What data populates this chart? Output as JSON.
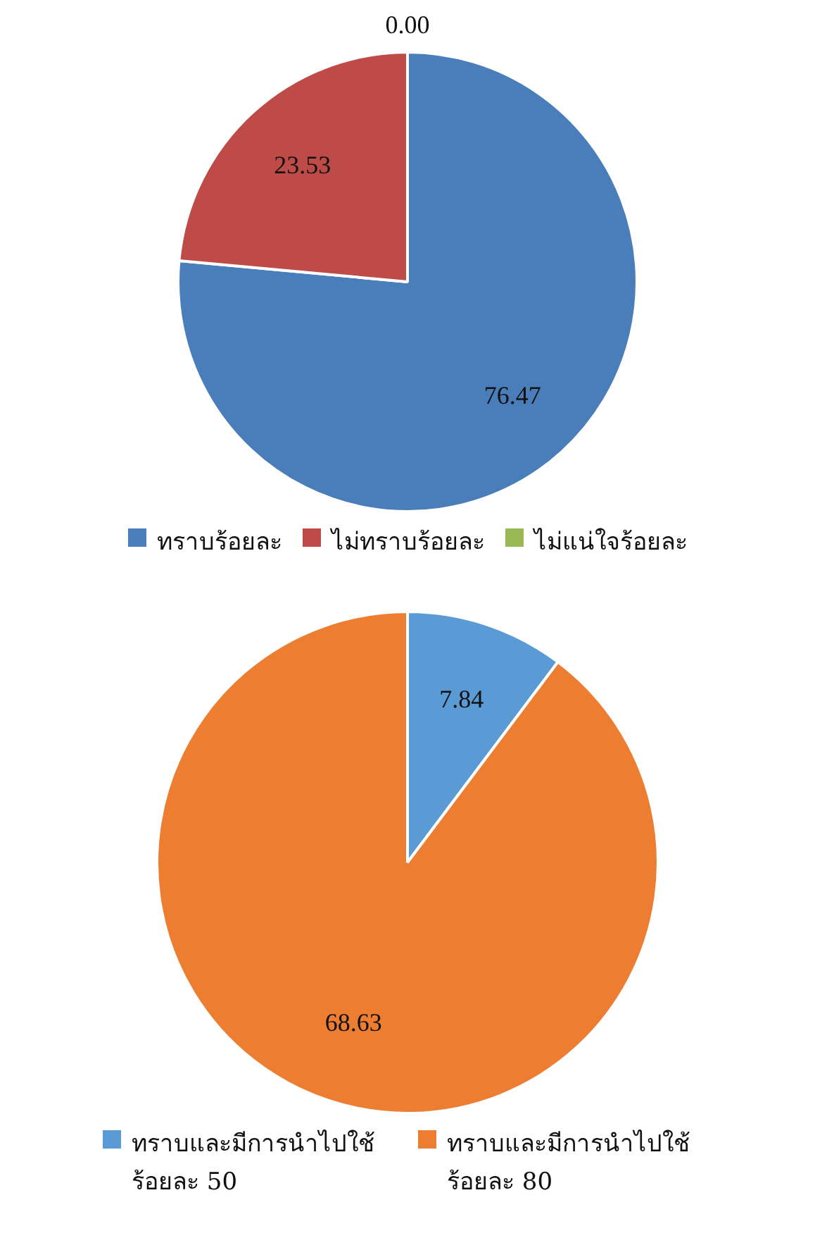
{
  "chart_data": [
    {
      "type": "pie",
      "categories": [
        "ทราบร้อยละ",
        "ไม่ทราบร้อยละ",
        "ไม่แน่ใจร้อยละ"
      ],
      "values": [
        76.47,
        23.53,
        0
      ],
      "colors": [
        "#4a7ebb",
        "#be4b48",
        "#98b954"
      ],
      "value_labels": [
        "76.47",
        "23.53",
        "0.00"
      ],
      "legend": "bottom"
    },
    {
      "type": "pie",
      "categories": [
        "ทราบและมีการนำไปใช้ร้อยละ 50",
        "ทราบและมีการนำไปใช้ร้อยละ 80"
      ],
      "values": [
        7.84,
        68.63
      ],
      "colors": [
        "#5b9bd5",
        "#ed7d31"
      ],
      "value_labels": [
        "7.84",
        "68.63"
      ],
      "legend": "bottom"
    }
  ]
}
